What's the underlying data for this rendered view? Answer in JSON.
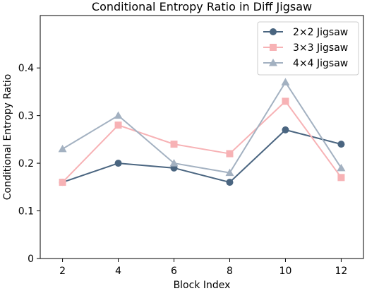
{
  "chart_data": {
    "type": "line",
    "title": "Conditional Entropy Ratio in Diff Jigsaw",
    "xlabel": "Block Index",
    "ylabel": "Conditional Entropy Ratio",
    "x": [
      2,
      4,
      6,
      8,
      10,
      12
    ],
    "xticks": [
      "2",
      "4",
      "6",
      "8",
      "10",
      "12"
    ],
    "yticks": [
      "0",
      "0.1",
      "0.2",
      "0.3",
      "0.4"
    ],
    "xlim": [
      1.2,
      12.8
    ],
    "ylim": [
      0,
      0.51
    ],
    "legend_position": "upper right",
    "grid": false,
    "series": [
      {
        "name": "2×2 Jigsaw",
        "marker": "circle",
        "color": "#4a6580",
        "values": [
          0.16,
          0.2,
          0.19,
          0.16,
          0.27,
          0.24
        ]
      },
      {
        "name": "3×3 Jigsaw",
        "marker": "square",
        "color": "#f7b2b5",
        "values": [
          0.16,
          0.28,
          0.24,
          0.22,
          0.33,
          0.17
        ]
      },
      {
        "name": "4×4 Jigsaw",
        "marker": "triangle",
        "color": "#a3b1c1",
        "values": [
          0.23,
          0.3,
          0.2,
          0.18,
          0.37,
          0.19
        ]
      }
    ]
  }
}
